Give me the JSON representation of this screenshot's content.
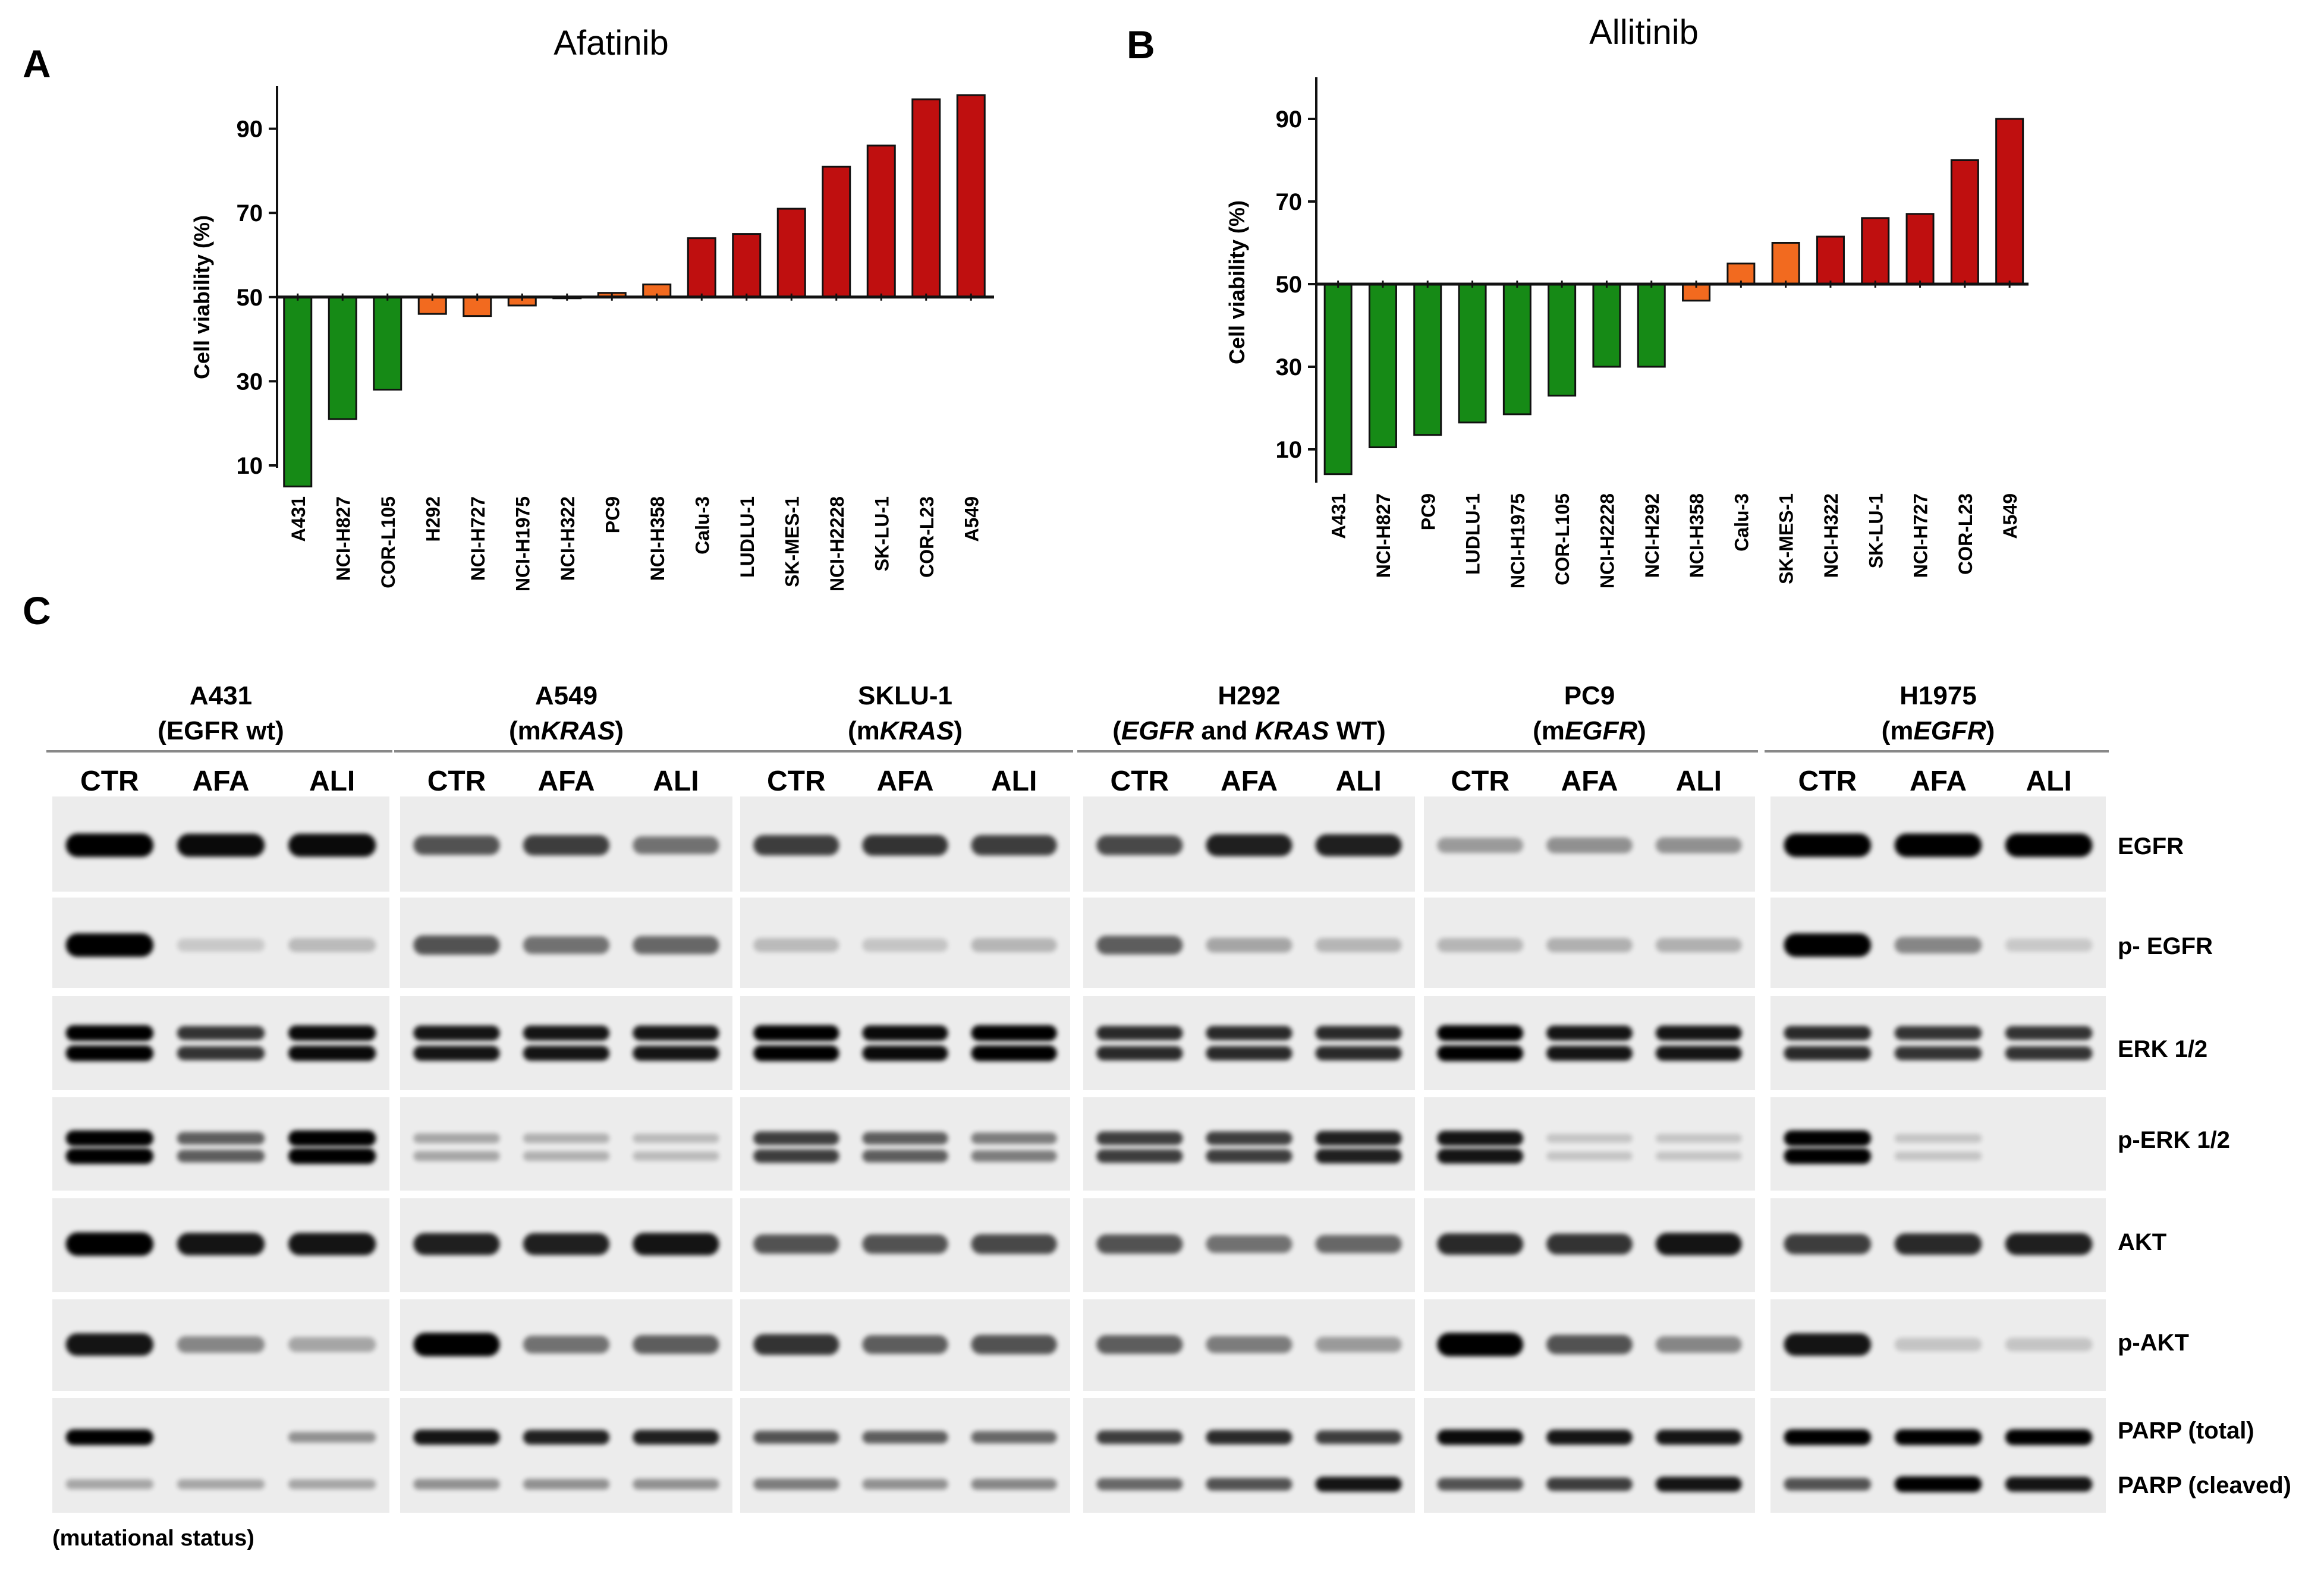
{
  "panels": {
    "a": "A",
    "b": "B",
    "c": "C"
  },
  "colors": {
    "sensitive": "#168a16",
    "intermediate": "#f26a1f",
    "resistant": "#bf0f0f"
  },
  "chart_data": [
    {
      "type": "bar",
      "title": "Afatinib",
      "ylabel": "Cell viability (%)",
      "xlabel": "",
      "ylim": [
        5,
        100
      ],
      "baseline": 50,
      "yticks": [
        10,
        30,
        50,
        70,
        90
      ],
      "categories": [
        "A431",
        "NCI-H827",
        "COR-L105",
        "H292",
        "NCI-H727",
        "NCI-H1975",
        "NCI-H322",
        "PC9",
        "NCI-H358",
        "Calu-3",
        "LUDLU-1",
        "SK-MES-1",
        "NCI-H2228",
        "SK-LU-1",
        "COR-L23",
        "A549"
      ],
      "values": [
        5,
        21,
        28,
        46,
        45.5,
        48,
        50,
        51,
        53,
        64,
        65,
        71,
        81,
        86,
        97,
        98
      ],
      "groups": [
        "sensitive",
        "sensitive",
        "sensitive",
        "intermediate",
        "intermediate",
        "intermediate",
        "intermediate",
        "intermediate",
        "intermediate",
        "resistant",
        "resistant",
        "resistant",
        "resistant",
        "resistant",
        "resistant",
        "resistant"
      ]
    },
    {
      "type": "bar",
      "title": "Allitinib",
      "ylabel": "Cell viability (%)",
      "xlabel": "",
      "ylim": [
        2,
        98
      ],
      "baseline": 50,
      "yticks": [
        10,
        30,
        50,
        70,
        90
      ],
      "categories": [
        "A431",
        "NCI-H827",
        "PC9",
        "LUDLU-1",
        "NCI-H1975",
        "COR-L105",
        "NCI-H2228",
        "NCI-H292",
        "NCI-H358",
        "Calu-3",
        "SK-MES-1",
        "NCI-H322",
        "SK-LU-1",
        "NCI-H727",
        "COR-L23",
        "A549"
      ],
      "values": [
        4,
        10.5,
        13.5,
        16.5,
        18.5,
        23,
        30,
        30,
        46,
        55,
        60,
        61.5,
        66,
        67,
        80,
        90
      ],
      "groups": [
        "sensitive",
        "sensitive",
        "sensitive",
        "sensitive",
        "sensitive",
        "sensitive",
        "sensitive",
        "sensitive",
        "intermediate",
        "intermediate",
        "intermediate",
        "resistant",
        "resistant",
        "resistant",
        "resistant",
        "resistant"
      ]
    }
  ],
  "blot": {
    "cell_lines": [
      {
        "name": "A431",
        "status": [
          {
            "t": "(EGFR wt)",
            "i": false
          }
        ]
      },
      {
        "name": "A549",
        "status": [
          {
            "t": "(m",
            "i": false
          },
          {
            "t": "KRAS",
            "i": true
          },
          {
            "t": ")",
            "i": false
          }
        ]
      },
      {
        "name": "SKLU-1",
        "status": [
          {
            "t": "(m",
            "i": false
          },
          {
            "t": "KRAS",
            "i": true
          },
          {
            "t": ")",
            "i": false
          }
        ]
      },
      {
        "name": "H292",
        "status": [
          {
            "t": "(",
            "i": false
          },
          {
            "t": "EGFR",
            "i": true
          },
          {
            "t": " and ",
            "i": false
          },
          {
            "t": "KRAS",
            "i": true
          },
          {
            "t": " WT)",
            "i": false
          }
        ]
      },
      {
        "name": "PC9",
        "status": [
          {
            "t": "(m",
            "i": false
          },
          {
            "t": "EGFR",
            "i": true
          },
          {
            "t": ")",
            "i": false
          }
        ]
      },
      {
        "name": "H1975",
        "status": [
          {
            "t": "(m",
            "i": false
          },
          {
            "t": "EGFR",
            "i": true
          },
          {
            "t": ")",
            "i": false
          }
        ]
      }
    ],
    "lanes": [
      "CTR",
      "AFA",
      "ALI"
    ],
    "rows": [
      "EGFR",
      "p- EGFR",
      "ERK 1/2",
      "p-ERK 1/2",
      "AKT",
      "p-AKT",
      "PARP (total)",
      "PARP (cleaved)"
    ],
    "intensity": {
      "EGFR": [
        [
          1,
          0.95,
          0.95
        ],
        [
          0.6,
          0.7,
          0.45
        ],
        [
          0.7,
          0.75,
          0.7
        ],
        [
          0.65,
          0.85,
          0.85
        ],
        [
          0.25,
          0.3,
          0.3
        ],
        [
          1,
          1,
          1
        ]
      ],
      "p- EGFR": [
        [
          1,
          0.03,
          0.1
        ],
        [
          0.6,
          0.45,
          0.5
        ],
        [
          0.1,
          0.05,
          0.12
        ],
        [
          0.55,
          0.2,
          0.12
        ],
        [
          0.12,
          0.15,
          0.15
        ],
        [
          1,
          0.35,
          0.03
        ]
      ],
      "ERK 1/2": [
        [
          1,
          0.75,
          0.95
        ],
        [
          0.9,
          0.9,
          0.9
        ],
        [
          1,
          0.95,
          1
        ],
        [
          0.8,
          0.8,
          0.8
        ],
        [
          1,
          0.9,
          0.9
        ],
        [
          0.8,
          0.75,
          0.75
        ]
      ],
      "p-ERK 1/2": [
        [
          1,
          0.55,
          1
        ],
        [
          0.2,
          0.15,
          0.1
        ],
        [
          0.7,
          0.55,
          0.4
        ],
        [
          0.7,
          0.7,
          0.85
        ],
        [
          0.9,
          0.05,
          0.05
        ],
        [
          1,
          0.05,
          0.02
        ]
      ],
      "AKT": [
        [
          1,
          0.9,
          0.9
        ],
        [
          0.85,
          0.85,
          0.9
        ],
        [
          0.6,
          0.6,
          0.65
        ],
        [
          0.6,
          0.45,
          0.5
        ],
        [
          0.8,
          0.75,
          0.9
        ],
        [
          0.7,
          0.8,
          0.85
        ]
      ],
      "p-AKT": [
        [
          0.9,
          0.35,
          0.2
        ],
        [
          1,
          0.45,
          0.55
        ],
        [
          0.75,
          0.55,
          0.6
        ],
        [
          0.55,
          0.4,
          0.25
        ],
        [
          1,
          0.6,
          0.35
        ],
        [
          0.9,
          0.05,
          0.05
        ]
      ],
      "PARP (total)": [
        [
          1,
          0.02,
          0.3
        ],
        [
          0.9,
          0.85,
          0.85
        ],
        [
          0.6,
          0.55,
          0.5
        ],
        [
          0.7,
          0.8,
          0.7
        ],
        [
          0.95,
          0.9,
          0.9
        ],
        [
          1,
          1,
          1
        ]
      ],
      "PARP (cleaved)": [
        [
          0.2,
          0.2,
          0.2
        ],
        [
          0.3,
          0.3,
          0.3
        ],
        [
          0.4,
          0.3,
          0.35
        ],
        [
          0.5,
          0.6,
          0.9
        ],
        [
          0.6,
          0.7,
          0.9
        ],
        [
          0.6,
          1,
          0.9
        ]
      ]
    },
    "note": "(mutational status)"
  }
}
